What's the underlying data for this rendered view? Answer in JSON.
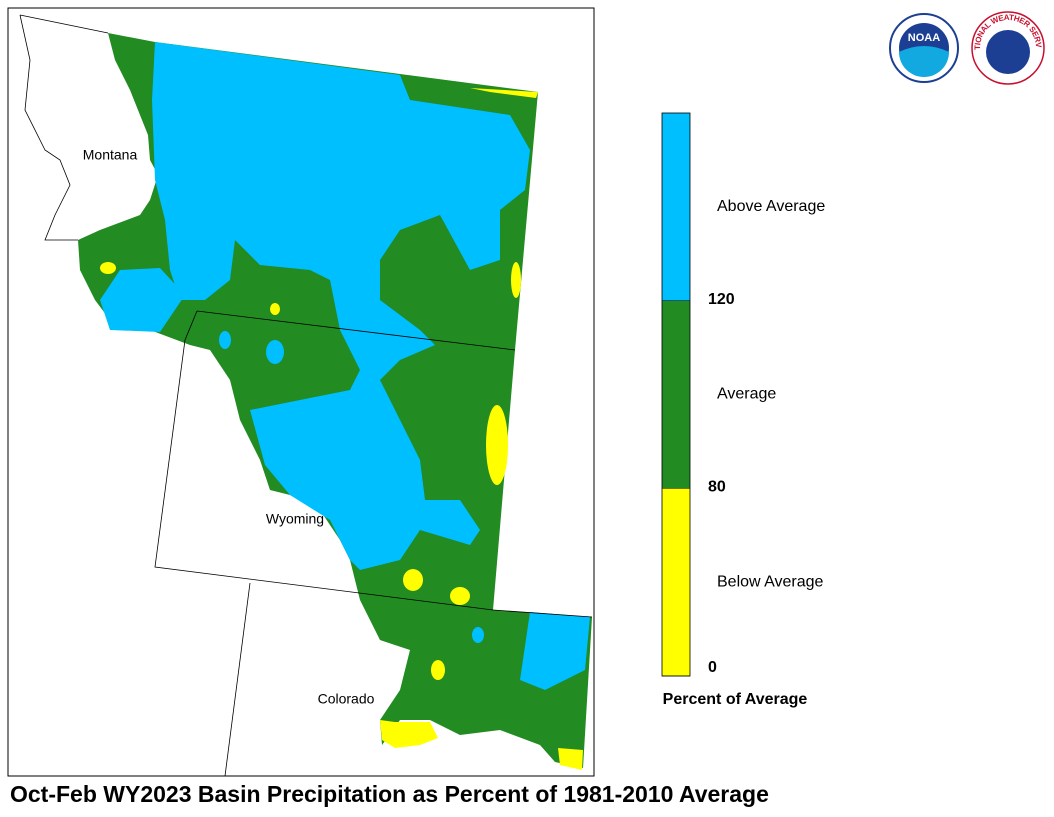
{
  "title": "Oct-Feb WY2023 Basin Precipitation as Percent of 1981-2010 Average",
  "map": {
    "labels": [
      "Montana",
      "Wyoming",
      "Colorado"
    ]
  },
  "logos": {
    "noaa": "NOAA",
    "nws": "NATIONAL WEATHER SERVICE"
  },
  "legend": {
    "title": "Percent of Average",
    "ticks": [
      0,
      80,
      120
    ],
    "classes": [
      {
        "label": "Below Average",
        "color": "#ffff00"
      },
      {
        "label": "Average",
        "color": "#228b22"
      },
      {
        "label": "Above Average",
        "color": "#00bfff"
      }
    ]
  }
}
